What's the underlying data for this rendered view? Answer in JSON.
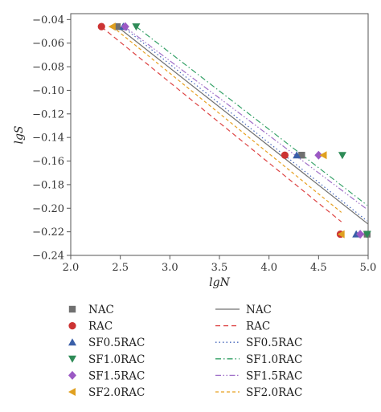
{
  "chart_data": {
    "type": "scatter",
    "title": "",
    "xlabel": "lgN",
    "ylabel": "lgS",
    "xlim": [
      2.0,
      5.0
    ],
    "ylim": [
      -0.24,
      -0.035
    ],
    "xticks": [
      "2.0",
      "2.5",
      "3.0",
      "3.5",
      "4.0",
      "4.5",
      "5.0"
    ],
    "yticks": [
      "-0.04",
      "-0.06",
      "-0.08",
      "-0.10",
      "-0.12",
      "-0.14",
      "-0.16",
      "-0.18",
      "-0.20",
      "-0.22",
      "-0.24"
    ],
    "grid": false,
    "legend_position": "bottom",
    "series": [
      {
        "name": "NAC",
        "marker": "square",
        "color": "#707070",
        "points": [
          [
            2.47,
            -0.046
          ],
          [
            4.33,
            -0.155
          ],
          [
            4.99,
            -0.222
          ]
        ]
      },
      {
        "name": "RAC",
        "marker": "circle",
        "color": "#cc3333",
        "points": [
          [
            2.31,
            -0.046
          ],
          [
            4.16,
            -0.155
          ],
          [
            4.72,
            -0.222
          ]
        ]
      },
      {
        "name": "SF0.5RAC",
        "marker": "triangle-up",
        "color": "#3a5fa8",
        "points": [
          [
            2.53,
            -0.046
          ],
          [
            4.28,
            -0.155
          ],
          [
            4.88,
            -0.222
          ]
        ]
      },
      {
        "name": "SF1.0RAC",
        "marker": "triangle-down",
        "color": "#2e8b57",
        "points": [
          [
            2.66,
            -0.046
          ],
          [
            4.74,
            -0.155
          ],
          [
            4.99,
            -0.222
          ]
        ]
      },
      {
        "name": "SF1.5RAC",
        "marker": "diamond",
        "color": "#9b59c4",
        "points": [
          [
            2.55,
            -0.046
          ],
          [
            4.5,
            -0.155
          ],
          [
            4.92,
            -0.222
          ]
        ]
      },
      {
        "name": "SF2.0RAC",
        "marker": "triangle-left",
        "color": "#e0a020",
        "points": [
          [
            2.42,
            -0.046
          ],
          [
            4.55,
            -0.155
          ],
          [
            4.73,
            -0.222
          ]
        ]
      }
    ],
    "fits": [
      {
        "name": "NAC",
        "dash": "solid",
        "color": "#707070",
        "x": [
          2.47,
          5.0
        ],
        "y": [
          -0.046,
          -0.2135
        ]
      },
      {
        "name": "RAC",
        "dash": "dashed",
        "color": "#dd4444",
        "x": [
          2.31,
          4.73
        ],
        "y": [
          -0.0462,
          -0.2115
        ]
      },
      {
        "name": "SF0.5RAC",
        "dash": "dotted",
        "color": "#4466bb",
        "x": [
          2.53,
          4.99
        ],
        "y": [
          -0.0465,
          -0.2108
        ]
      },
      {
        "name": "SF1.0RAC",
        "dash": "dashdot",
        "color": "#33a066",
        "x": [
          2.66,
          4.99
        ],
        "y": [
          -0.046,
          -0.1975
        ]
      },
      {
        "name": "SF1.5RAC",
        "dash": "dashdotdot",
        "color": "#a070c8",
        "x": [
          2.55,
          4.99
        ],
        "y": [
          -0.0465,
          -0.201
        ]
      },
      {
        "name": "SF2.0RAC",
        "dash": "dashed-short",
        "color": "#e6a020",
        "x": [
          2.42,
          4.73
        ],
        "y": [
          -0.046,
          -0.2035
        ]
      }
    ]
  }
}
